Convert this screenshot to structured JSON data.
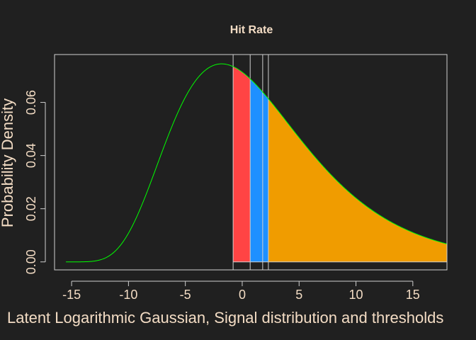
{
  "chart_data": {
    "type": "area",
    "title": "Hit Rate",
    "xlabel": "Latent Logarithmic Gaussian, Signal distribution  and thresholds",
    "ylabel": "Probability Density",
    "xlim": [
      -16.5,
      18
    ],
    "ylim": [
      -0.003,
      0.078
    ],
    "x_ticks": [
      -15,
      -10,
      -5,
      0,
      5,
      10,
      15
    ],
    "y_ticks": [
      0.0,
      0.02,
      0.04,
      0.06
    ],
    "x_tick_labels": [
      "-15",
      "-10",
      "-5",
      "0",
      "5",
      "10",
      "15"
    ],
    "y_tick_labels": [
      "0.00",
      "0.02",
      "0.04",
      "0.06"
    ],
    "curve": {
      "type": "log-gaussian",
      "x_range": [
        -15.5,
        18
      ],
      "shift": -17.66,
      "mu": 2.9,
      "sigma": 0.37,
      "peak_density": 0.0745,
      "color": "#00ff00"
    },
    "thresholds": [
      -0.8,
      0.7,
      1.8,
      2.3
    ],
    "regions": [
      {
        "from": -0.8,
        "to": 0.7,
        "color": "#ff4444"
      },
      {
        "from": 0.7,
        "to": 2.3,
        "color": "#1e90ff"
      },
      {
        "from": 2.3,
        "to": 18,
        "color": "#f09c00"
      }
    ],
    "grid": false,
    "colors": {
      "background": "#202020",
      "axes": "#cfcfcf",
      "text": "#f3dcc4"
    }
  }
}
